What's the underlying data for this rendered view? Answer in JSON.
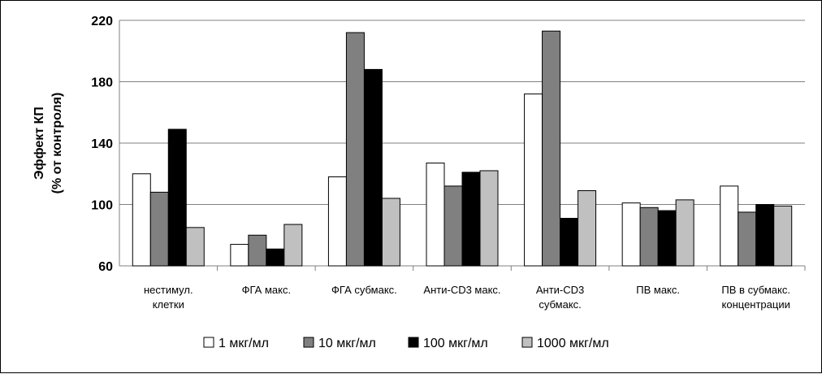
{
  "chart_data": {
    "type": "bar",
    "ylabel": [
      "Эффект КП",
      "(% от контроля)"
    ],
    "ylim": [
      60,
      220
    ],
    "yticks": [
      60,
      100,
      140,
      180,
      220
    ],
    "grid": true,
    "legend_position": "bottom",
    "categories": [
      [
        "нестимул.",
        "клетки"
      ],
      [
        "ФГА макс."
      ],
      [
        "ФГА субмакс."
      ],
      [
        "Анти-CD3 макс."
      ],
      [
        "Анти-CD3",
        "субмакс."
      ],
      [
        "ПВ макс."
      ],
      [
        "ПВ в субмакс.",
        "концентрации"
      ]
    ],
    "series": [
      {
        "name": "1 мкг/мл",
        "color": "#ffffff",
        "values": [
          120,
          74,
          118,
          127,
          172,
          101,
          112
        ]
      },
      {
        "name": "10 мкг/мл",
        "color": "#808080",
        "values": [
          108,
          80,
          212,
          112,
          213,
          98,
          95
        ]
      },
      {
        "name": "100 мкг/мл",
        "color": "#000000",
        "values": [
          149,
          71,
          188,
          121,
          91,
          96,
          100
        ]
      },
      {
        "name": "1000 мкг/мл",
        "color": "#c0c0c0",
        "values": [
          85,
          87,
          104,
          122,
          109,
          103,
          99
        ]
      }
    ]
  }
}
